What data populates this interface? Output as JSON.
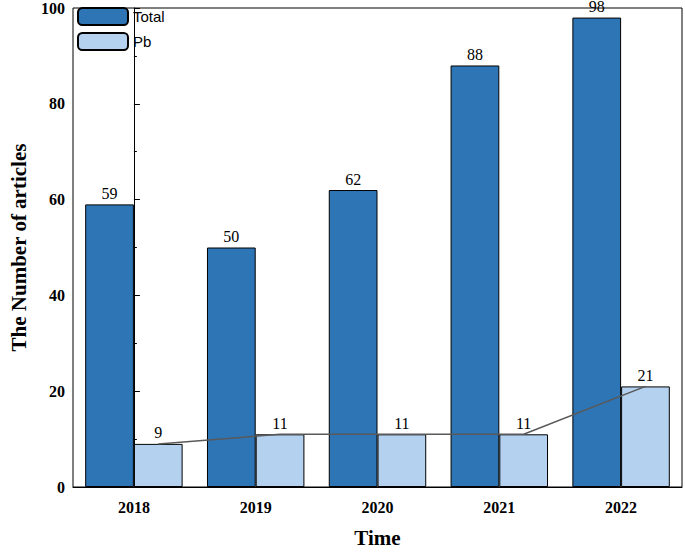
{
  "chart_data": {
    "type": "bar",
    "x_label": "Time",
    "y_label": "The Number of articles",
    "categories": [
      "2018",
      "2019",
      "2020",
      "2021",
      "2022"
    ],
    "series": [
      {
        "name": "Total",
        "color": "#2e75b6",
        "values": [
          59,
          50,
          62,
          88,
          98
        ]
      },
      {
        "name": "Pb",
        "color": "#b4d1f0",
        "values": [
          9,
          11,
          11,
          11,
          21
        ],
        "line_style": "solid"
      }
    ],
    "ylim": [
      0,
      100
    ],
    "yticks": [
      0,
      20,
      40,
      60,
      80,
      100
    ],
    "grid": false,
    "legend": "upper left",
    "data_labels": true
  }
}
